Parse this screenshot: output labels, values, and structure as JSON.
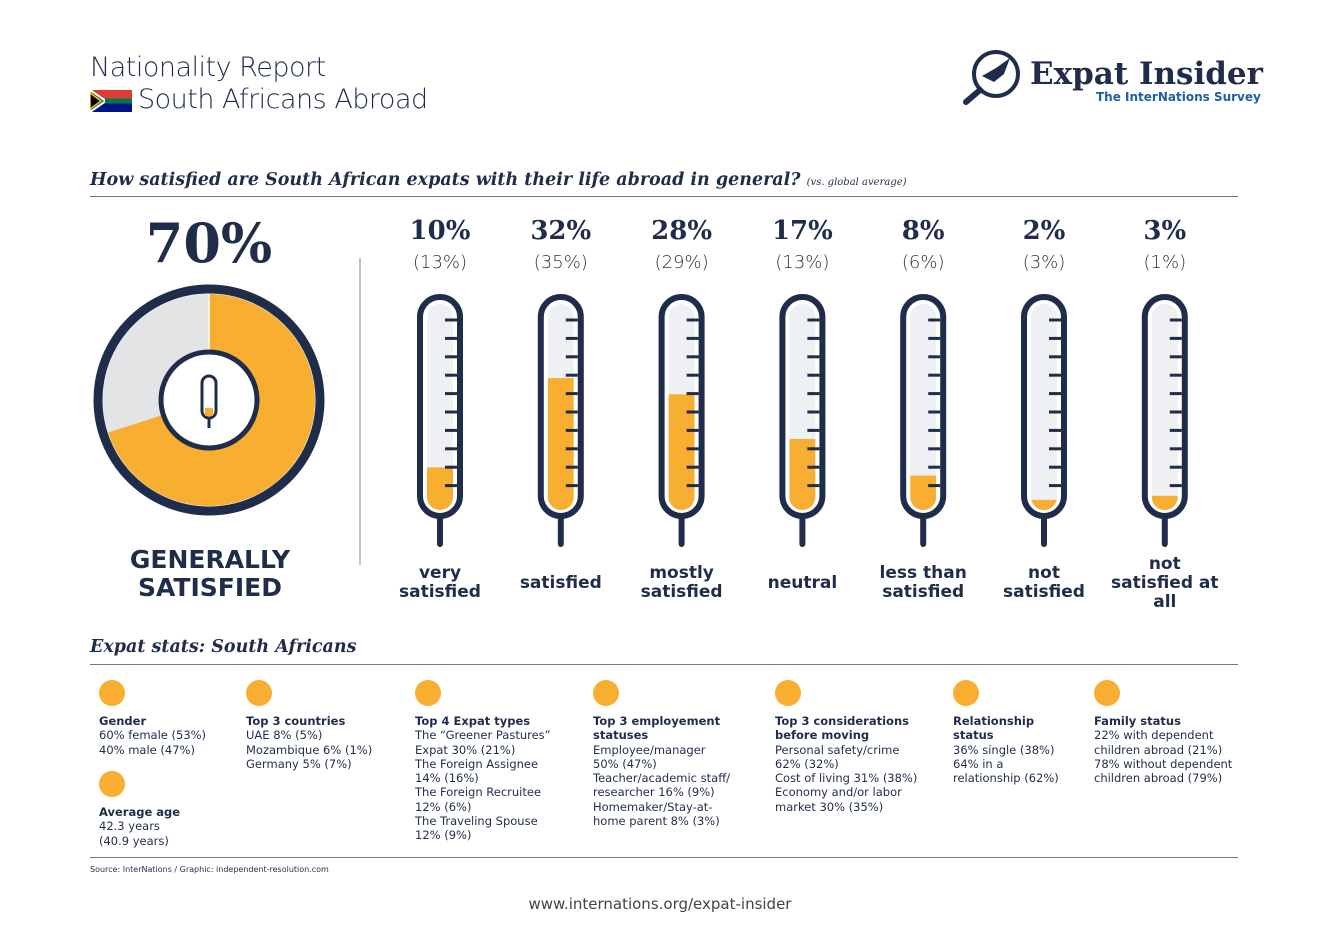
{
  "header": {
    "report": "Nationality Report",
    "title": "South Africans Abroad",
    "logo": "Expat Insider",
    "logo_sub": "The InterNations Survey"
  },
  "chart_data": {
    "type": "thermometer",
    "title": "How satisfied are South African expats with their life abroad in general?",
    "subtitle": "(vs. global average)",
    "summary": {
      "value": 70,
      "value_label": "70%",
      "label": "GENERALLY SATISFIED"
    },
    "categories": [
      "very satisfied",
      "satisfied",
      "mostly satisfied",
      "neutral",
      "less than satisfied",
      "not satisfied",
      "not satisfied at all"
    ],
    "values": [
      10,
      32,
      28,
      17,
      8,
      2,
      3
    ],
    "value_labels": [
      "10%",
      "32%",
      "28%",
      "17%",
      "8%",
      "2%",
      "3%"
    ],
    "global_average": {
      "values": [
        13,
        35,
        29,
        13,
        6,
        3,
        1
      ],
      "value_labels": [
        "(13%)",
        "(35%)",
        "(29%)",
        "(13%)",
        "(6%)",
        "(3%)",
        "(1%)"
      ]
    },
    "ylim": [
      0,
      50
    ],
    "color": "#f7ae31"
  },
  "stats": {
    "title": "Expat stats: South Africans",
    "items": [
      {
        "heading": "Gender",
        "lines": [
          "60% female (53%)",
          "40% male (47%)"
        ]
      },
      {
        "heading": "Average age",
        "lines": [
          "42.3 years",
          "(40.9 years)"
        ]
      },
      {
        "heading": "Top 3 countries",
        "lines": [
          "UAE 8% (5%)",
          "Mozambique 6% (1%)",
          "Germany 5% (7%)"
        ]
      },
      {
        "heading": "Top 4 Expat types",
        "lines": [
          "The “Greener Pastures” Expat 30% (21%)",
          "The Foreign Assignee 14% (16%)",
          "The Foreign Recruitee 12% (6%)",
          "The Traveling Spouse 12% (9%)"
        ]
      },
      {
        "heading": "Top 3 employement statuses",
        "lines": [
          "Employee/manager 50% (47%)",
          "Teacher/academic staff/ researcher 16% (9%)",
          "Homemaker/Stay-at-home parent 8% (3%)"
        ]
      },
      {
        "heading": "Top 3 considerations before moving",
        "lines": [
          "Personal safety/crime 62% (32%)",
          "Cost of living 31% (38%)",
          "Economy and/or labor market 30% (35%)"
        ]
      },
      {
        "heading": "Relationship status",
        "lines": [
          "36% single (38%)",
          "64% in a relationship (62%)"
        ]
      },
      {
        "heading": "Family status",
        "lines": [
          "22% with dependent children abroad (21%)",
          "78% without dependent children abroad (79%)"
        ]
      }
    ]
  },
  "footer": {
    "source": "Source: InterNations / Graphic: independent-resolution.com",
    "url": "www.internations.org/expat-insider"
  }
}
